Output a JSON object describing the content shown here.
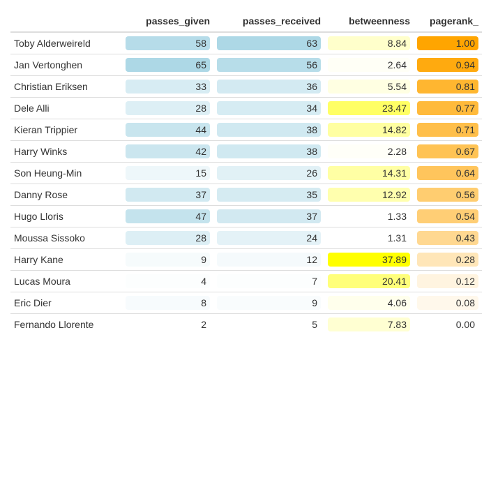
{
  "chart_data": {
    "type": "table",
    "columns": [
      "",
      "passes_given",
      "passes_received",
      "betweenness",
      "pagerank_"
    ],
    "rows": [
      {
        "player": "Toby Alderweireld",
        "passes_given": 58,
        "passes_received": 63,
        "betweenness": "8.84",
        "pagerank": "1.00"
      },
      {
        "player": "Jan Vertonghen",
        "passes_given": 65,
        "passes_received": 56,
        "betweenness": "2.64",
        "pagerank": "0.94"
      },
      {
        "player": "Christian Eriksen",
        "passes_given": 33,
        "passes_received": 36,
        "betweenness": "5.54",
        "pagerank": "0.81"
      },
      {
        "player": "Dele Alli",
        "passes_given": 28,
        "passes_received": 34,
        "betweenness": "23.47",
        "pagerank": "0.77"
      },
      {
        "player": "Kieran Trippier",
        "passes_given": 44,
        "passes_received": 38,
        "betweenness": "14.82",
        "pagerank": "0.71"
      },
      {
        "player": "Harry Winks",
        "passes_given": 42,
        "passes_received": 38,
        "betweenness": "2.28",
        "pagerank": "0.67"
      },
      {
        "player": "Son Heung-Min",
        "passes_given": 15,
        "passes_received": 26,
        "betweenness": "14.31",
        "pagerank": "0.64"
      },
      {
        "player": "Danny Rose",
        "passes_given": 37,
        "passes_received": 35,
        "betweenness": "12.92",
        "pagerank": "0.56"
      },
      {
        "player": "Hugo Lloris",
        "passes_given": 47,
        "passes_received": 37,
        "betweenness": "1.33",
        "pagerank": "0.54"
      },
      {
        "player": "Moussa Sissoko",
        "passes_given": 28,
        "passes_received": 24,
        "betweenness": "1.31",
        "pagerank": "0.43"
      },
      {
        "player": "Harry Kane",
        "passes_given": 9,
        "passes_received": 12,
        "betweenness": "37.89",
        "pagerank": "0.28"
      },
      {
        "player": "Lucas Moura",
        "passes_given": 4,
        "passes_received": 7,
        "betweenness": "20.41",
        "pagerank": "0.12"
      },
      {
        "player": "Eric Dier",
        "passes_given": 8,
        "passes_received": 9,
        "betweenness": "4.06",
        "pagerank": "0.08"
      },
      {
        "player": "Fernando Llorente",
        "passes_given": 2,
        "passes_received": 5,
        "betweenness": "7.83",
        "pagerank": "0.00"
      }
    ],
    "color_scales": {
      "passes_given": "#add8e6",
      "passes_received": "#add8e6",
      "betweenness": "#ffff00",
      "pagerank": "#ffa500"
    }
  }
}
